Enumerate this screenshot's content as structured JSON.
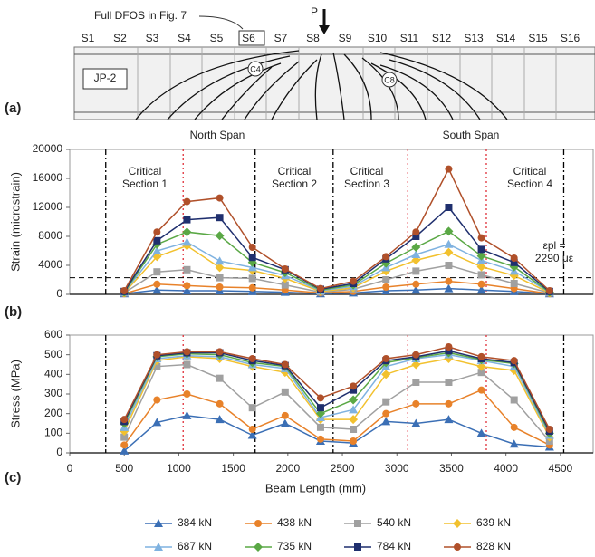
{
  "diagram": {
    "panel_labels": [
      "(a)",
      "(b)",
      "(c)"
    ],
    "fiber_note": "Full DFOS in Fig. 7",
    "load": "P",
    "sections": [
      "S1",
      "S2",
      "S3",
      "S4",
      "S5",
      "S6",
      "S7",
      "S8",
      "S9",
      "S10",
      "S11",
      "S12",
      "S13",
      "S14",
      "S15",
      "S16"
    ],
    "specimen": "JP-2",
    "cracks": [
      "C4",
      "C8"
    ],
    "spans": [
      "North Span",
      "South Span"
    ]
  },
  "chart_data": [
    {
      "type": "line",
      "ylabel": "Strain (microstrain)",
      "x": [
        500,
        800,
        1075,
        1375,
        1675,
        1975,
        2300,
        2600,
        2900,
        3175,
        3475,
        3775,
        4075,
        4400
      ],
      "xlim": [
        0,
        4800
      ],
      "ylim": [
        0,
        20000
      ],
      "yticks": [
        0,
        4000,
        8000,
        12000,
        16000,
        20000
      ],
      "vlines": [
        {
          "x": 330,
          "color": "#000000"
        },
        {
          "x": 1040,
          "color": "#e0303a"
        },
        {
          "x": 1700,
          "color": "#000000"
        },
        {
          "x": 2415,
          "color": "#000000"
        },
        {
          "x": 3100,
          "color": "#e0303a"
        },
        {
          "x": 3820,
          "color": "#e0303a"
        },
        {
          "x": 4530,
          "color": "#000000"
        }
      ],
      "annotations": [
        {
          "lines": [
            "Critical",
            "Section 1"
          ]
        },
        {
          "lines": [
            "Critical",
            "Section 2"
          ]
        },
        {
          "lines": [
            "Critical",
            "Section 3"
          ]
        },
        {
          "lines": [
            "Critical",
            "Section 4"
          ]
        }
      ],
      "hline": {
        "value": 2290,
        "lines": [
          "εpl =",
          "2290 με"
        ]
      },
      "series": [
        {
          "name": "384 kN",
          "color": "#3b6fb5",
          "marker": "triangle",
          "values": [
            100,
            600,
            500,
            500,
            400,
            300,
            100,
            200,
            500,
            600,
            800,
            600,
            400,
            100
          ]
        },
        {
          "name": "438 kN",
          "color": "#e8822a",
          "marker": "circle",
          "values": [
            100,
            1400,
            1200,
            1000,
            900,
            600,
            200,
            400,
            1000,
            1400,
            1800,
            1400,
            800,
            100
          ]
        },
        {
          "name": "540 kN",
          "color": "#a0a0a0",
          "marker": "square",
          "values": [
            200,
            3100,
            3400,
            2300,
            2200,
            1300,
            300,
            700,
            2000,
            3200,
            4000,
            2700,
            1500,
            200
          ]
        },
        {
          "name": "639 kN",
          "color": "#f2c12e",
          "marker": "diamond",
          "values": [
            200,
            5200,
            6700,
            3700,
            3300,
            2200,
            400,
            900,
            3200,
            4700,
            5800,
            3800,
            2600,
            200
          ]
        },
        {
          "name": "687 kN",
          "color": "#7fb2e0",
          "marker": "triangle",
          "values": [
            300,
            6000,
            7200,
            4600,
            3700,
            2600,
            500,
            1100,
            3700,
            5500,
            6900,
            4700,
            3200,
            300
          ]
        },
        {
          "name": "735 kN",
          "color": "#5aa845",
          "marker": "diamond",
          "values": [
            300,
            6900,
            8600,
            8100,
            4400,
            3000,
            600,
            1300,
            4300,
            6500,
            8700,
            5300,
            3800,
            300
          ]
        },
        {
          "name": "784 kN",
          "color": "#1f2f6e",
          "marker": "square",
          "values": [
            400,
            7400,
            10300,
            10600,
            5100,
            3400,
            700,
            1500,
            4900,
            8000,
            12000,
            6200,
            4400,
            400
          ]
        },
        {
          "name": "828 kN",
          "color": "#b0502a",
          "marker": "circle",
          "values": [
            500,
            8600,
            12800,
            13300,
            6500,
            3500,
            800,
            1800,
            5200,
            8600,
            17300,
            7800,
            5000,
            500
          ]
        }
      ]
    },
    {
      "type": "line",
      "ylabel": "Stress (MPa)",
      "xlabel": "Beam Length (mm)",
      "x": [
        500,
        800,
        1075,
        1375,
        1675,
        1975,
        2300,
        2600,
        2900,
        3175,
        3475,
        3775,
        4075,
        4400
      ],
      "xlim": [
        0,
        4800
      ],
      "xticks": [
        0,
        500,
        1000,
        1500,
        2000,
        2500,
        3000,
        3500,
        4000,
        4500
      ],
      "ylim": [
        0,
        600
      ],
      "yticks": [
        0,
        100,
        200,
        300,
        400,
        500,
        600
      ],
      "vlines": [
        {
          "x": 330,
          "color": "#000000"
        },
        {
          "x": 1040,
          "color": "#e0303a"
        },
        {
          "x": 1700,
          "color": "#000000"
        },
        {
          "x": 2415,
          "color": "#000000"
        },
        {
          "x": 3100,
          "color": "#e0303a"
        },
        {
          "x": 3820,
          "color": "#e0303a"
        },
        {
          "x": 4530,
          "color": "#000000"
        }
      ],
      "series": [
        {
          "name": "384 kN",
          "color": "#3b6fb5",
          "marker": "triangle",
          "values": [
            10,
            155,
            190,
            170,
            90,
            150,
            60,
            50,
            160,
            150,
            170,
            100,
            45,
            30
          ]
        },
        {
          "name": "438 kN",
          "color": "#e8822a",
          "marker": "circle",
          "values": [
            40,
            270,
            300,
            250,
            120,
            190,
            70,
            60,
            200,
            250,
            250,
            320,
            130,
            40
          ]
        },
        {
          "name": "540 kN",
          "color": "#a0a0a0",
          "marker": "square",
          "values": [
            80,
            440,
            450,
            380,
            230,
            310,
            130,
            120,
            260,
            360,
            360,
            410,
            270,
            60
          ]
        },
        {
          "name": "639 kN",
          "color": "#f2c12e",
          "marker": "diamond",
          "values": [
            110,
            470,
            490,
            480,
            440,
            410,
            170,
            170,
            400,
            450,
            480,
            440,
            420,
            80
          ]
        },
        {
          "name": "687 kN",
          "color": "#7fb2e0",
          "marker": "triangle",
          "values": [
            130,
            480,
            495,
            490,
            450,
            430,
            180,
            220,
            440,
            480,
            500,
            470,
            440,
            90
          ]
        },
        {
          "name": "735 kN",
          "color": "#5aa845",
          "marker": "diamond",
          "values": [
            150,
            490,
            505,
            500,
            460,
            440,
            200,
            270,
            460,
            485,
            510,
            475,
            455,
            100
          ]
        },
        {
          "name": "784 kN",
          "color": "#1f2f6e",
          "marker": "square",
          "values": [
            160,
            495,
            510,
            510,
            470,
            445,
            230,
            320,
            470,
            490,
            520,
            480,
            460,
            110
          ]
        },
        {
          "name": "828 kN",
          "color": "#b0502a",
          "marker": "circle",
          "values": [
            170,
            500,
            515,
            515,
            480,
            450,
            280,
            340,
            480,
            500,
            540,
            490,
            470,
            120
          ]
        }
      ]
    }
  ]
}
